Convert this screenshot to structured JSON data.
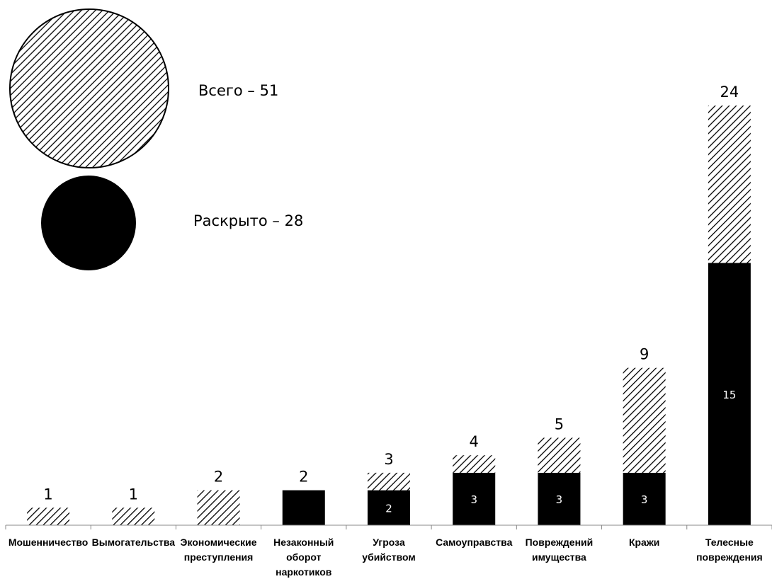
{
  "legend": {
    "total_label": "Всего – 51",
    "solved_label": "Раскрыто – 28"
  },
  "colors": {
    "solved": "#000000",
    "hatch": "#000000",
    "background": "#ffffff"
  },
  "chart_data": {
    "type": "bar",
    "stacked": true,
    "categories": [
      [
        "Мошенничество"
      ],
      [
        "Вымогательства"
      ],
      [
        "Экономические",
        "преступления"
      ],
      [
        "Незаконный",
        "оборот",
        "наркотиков"
      ],
      [
        "Угроза",
        "убийством"
      ],
      [
        "Самоуправства"
      ],
      [
        "Повреждений",
        "имущества"
      ],
      [
        "Кражи"
      ],
      [
        "Телесные",
        "повреждения"
      ]
    ],
    "totals": [
      1,
      1,
      2,
      2,
      3,
      4,
      5,
      9,
      24
    ],
    "solved": [
      0,
      0,
      0,
      2,
      2,
      3,
      3,
      3,
      15
    ],
    "solved_labels": [
      "",
      "",
      "",
      "",
      "2",
      "3",
      "3",
      "3",
      "15"
    ],
    "series": [
      {
        "values": [
          0,
          0,
          0,
          2,
          2,
          3,
          3,
          3,
          15
        ]
      },
      {
        "values": [
          1,
          1,
          2,
          0,
          1,
          1,
          2,
          6,
          9
        ]
      }
    ],
    "ylim": [
      0,
      24
    ],
    "grid": false,
    "legend_placement": "top-left"
  }
}
